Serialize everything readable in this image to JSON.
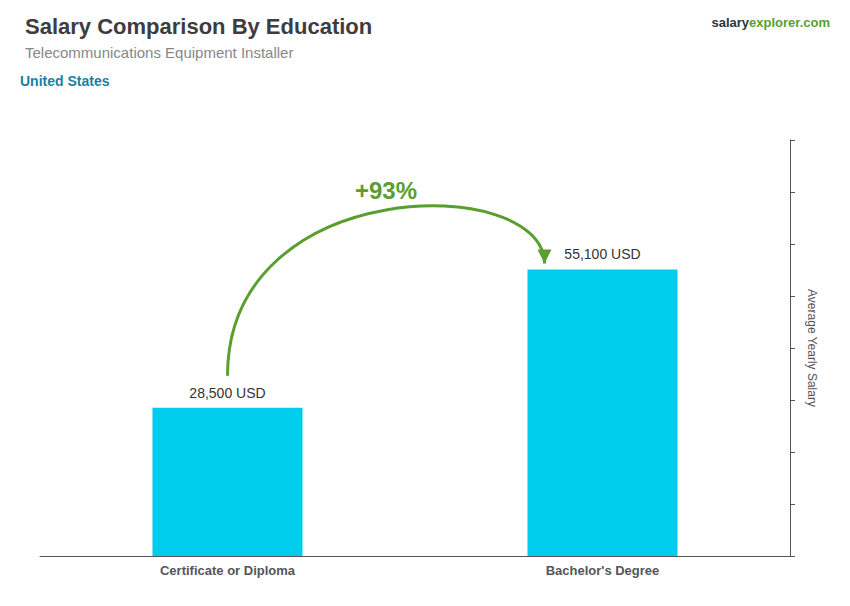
{
  "chart_data": {
    "type": "bar",
    "title": "Salary Comparison By Education",
    "subtitle": "Telecommunications Equipment Installer",
    "country": "United States",
    "source": [
      "salary",
      "explorer.com"
    ],
    "ylabel": "Average Yearly Salary",
    "categories": [
      "Certificate or Diploma",
      "Bachelor's Degree"
    ],
    "values": [
      28500,
      55100
    ],
    "value_labels": [
      "28,500 USD",
      "55,100 USD"
    ],
    "data_labels": true,
    "color": "#00CCEE",
    "annotations": [
      {
        "text": "+93%",
        "from": "Certificate or Diploma",
        "to": "Bachelor's Degree"
      }
    ],
    "ylim": [
      0,
      80000
    ],
    "yticks": [
      0,
      10000,
      20000,
      30000,
      40000,
      50000,
      60000,
      70000,
      80000
    ],
    "tick_labels": "x",
    "grid": false,
    "legend": false
  }
}
